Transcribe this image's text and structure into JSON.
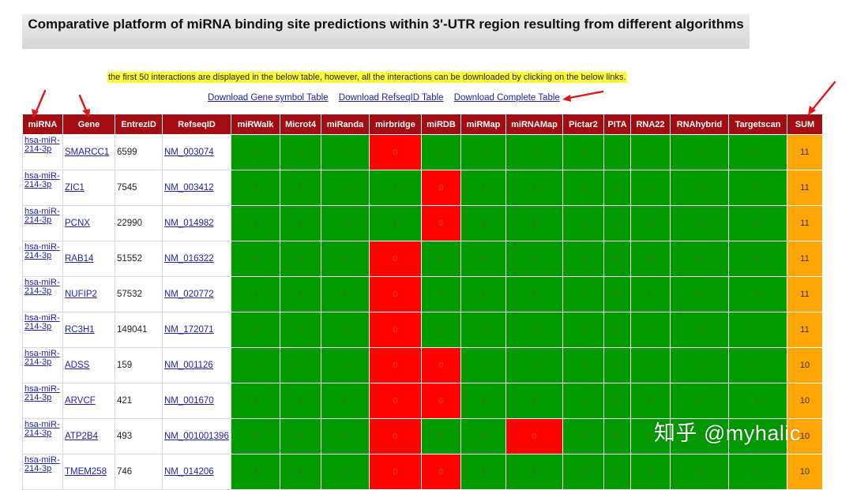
{
  "title": "Comparative platform of miRNA binding site predictions within 3'-UTR region resulting from different algorithms",
  "notice": "the first 50 interactions are displayed in the below table, however, all the interactions can be downloaded by clicking on the below links.",
  "links": [
    "Download Gene symbol Table",
    "Download RefseqID Table",
    "Download Complete Table"
  ],
  "table": {
    "headers": [
      "miRNA",
      "Gene",
      "EntrezID",
      "RefseqID",
      "miRWalk",
      "Microt4",
      "miRanda",
      "mirbridge",
      "miRDB",
      "miRMap",
      "miRNAMap",
      "Pictar2",
      "PITA",
      "RNA22",
      "RNAhybrid",
      "Targetscan",
      "SUM"
    ],
    "rows": [
      {
        "mirna": "hsa-miR-214-3p",
        "gene": "SMARCC1",
        "entrez": "6599",
        "refseq": "NM_003074",
        "values": [
          "1",
          "1",
          "1",
          "0",
          "1",
          "1",
          "1",
          "1",
          "1",
          "1",
          "1",
          "1"
        ],
        "sum": "11"
      },
      {
        "mirna": "hsa-miR-214-3p",
        "gene": "ZIC1",
        "entrez": "7545",
        "refseq": "NM_003412",
        "values": [
          "1",
          "1",
          "1",
          "1",
          "0",
          "1",
          "1",
          "1",
          "1",
          "1",
          "1",
          "1"
        ],
        "sum": "11"
      },
      {
        "mirna": "hsa-miR-214-3p",
        "gene": "PCNX",
        "entrez": "22990",
        "refseq": "NM_014982",
        "values": [
          "1",
          "1",
          "1",
          "1",
          "0",
          "1",
          "1",
          "1",
          "1",
          "1",
          "1",
          "1"
        ],
        "sum": "11"
      },
      {
        "mirna": "hsa-miR-214-3p",
        "gene": "RAB14",
        "entrez": "51552",
        "refseq": "NM_016322",
        "values": [
          "1",
          "1",
          "1",
          "0",
          "1",
          "1",
          "1",
          "1",
          "1",
          "1",
          "1",
          "1"
        ],
        "sum": "11"
      },
      {
        "mirna": "hsa-miR-214-3p",
        "gene": "NUFIP2",
        "entrez": "57532",
        "refseq": "NM_020772",
        "values": [
          "1",
          "1",
          "1",
          "0",
          "1",
          "1",
          "1",
          "1",
          "1",
          "1",
          "1",
          "1"
        ],
        "sum": "11"
      },
      {
        "mirna": "hsa-miR-214-3p",
        "gene": "RC3H1",
        "entrez": "149041",
        "refseq": "NM_172071",
        "values": [
          "1",
          "1",
          "1",
          "0",
          "1",
          "1",
          "1",
          "1",
          "1",
          "1",
          "1",
          "1"
        ],
        "sum": "11"
      },
      {
        "mirna": "hsa-miR-214-3p",
        "gene": "ADSS",
        "entrez": "159",
        "refseq": "NM_001126",
        "values": [
          "1",
          "1",
          "1",
          "0",
          "0",
          "1",
          "1",
          "1",
          "1",
          "1",
          "1",
          "1"
        ],
        "sum": "10"
      },
      {
        "mirna": "hsa-miR-214-3p",
        "gene": "ARVCF",
        "entrez": "421",
        "refseq": "NM_001670",
        "values": [
          "1",
          "1",
          "1",
          "0",
          "0",
          "1",
          "1",
          "1",
          "1",
          "1",
          "1",
          "1"
        ],
        "sum": "10"
      },
      {
        "mirna": "hsa-miR-214-3p",
        "gene": "ATP2B4",
        "entrez": "493",
        "refseq": "NM_001001396",
        "values": [
          "1",
          "1",
          "1",
          "0",
          "1",
          "1",
          "0",
          "1",
          "1",
          "1",
          "1",
          "1"
        ],
        "sum": "10"
      },
      {
        "mirna": "hsa-miR-214-3p",
        "gene": "TMEM258",
        "entrez": "746",
        "refseq": "NM_014206",
        "values": [
          "1",
          "1",
          "1",
          "0",
          "0",
          "1",
          "1",
          "1",
          "1",
          "1",
          "1",
          "1"
        ],
        "sum": "10"
      }
    ]
  },
  "watermark": "知乎 @myhalic",
  "colors": {
    "header": "#a30c12",
    "match": "#019a01",
    "miss": "#ff0202",
    "sum": "#ffa505",
    "annotation_arrow": "#e0141a"
  }
}
